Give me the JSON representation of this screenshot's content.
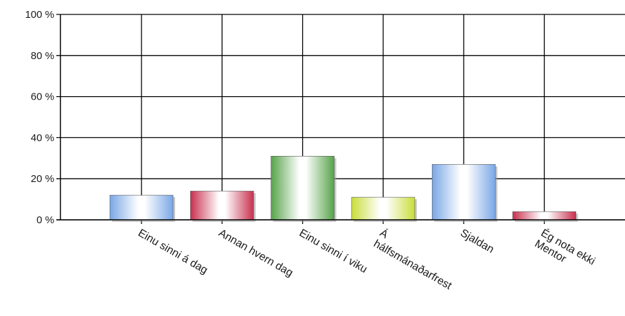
{
  "chart_data": {
    "type": "bar",
    "title": "",
    "xlabel": "",
    "ylabel": "",
    "ylim": [
      0,
      100
    ],
    "yticks": [
      0,
      20,
      40,
      60,
      80,
      100
    ],
    "ytick_labels": [
      "0 %",
      "20 %",
      "40 %",
      "60 %",
      "80 %",
      "100 %"
    ],
    "grid": true,
    "legend": "none",
    "categories": [
      [
        "Einu sinni á dag"
      ],
      [
        "Annan hvern dag"
      ],
      [
        "Einu sinni í viku"
      ],
      [
        "Á",
        "hálfsmánaðarfrest"
      ],
      [
        "Sjaldan"
      ],
      [
        "Ég nota ekki",
        "Mentor"
      ]
    ],
    "values": [
      12,
      14,
      31,
      11,
      27,
      4
    ],
    "colors": [
      "#7aa7e6",
      "#c8304f",
      "#56a34a",
      "#c9dd3a",
      "#7aa7e6",
      "#c8304f"
    ]
  }
}
